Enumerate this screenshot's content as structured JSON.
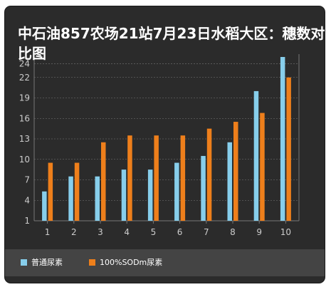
{
  "chart_data": {
    "type": "bar",
    "title": "中石油857农场21站7月23日水稻大区：穗数对比图",
    "categories": [
      "1",
      "2",
      "3",
      "4",
      "5",
      "6",
      "7",
      "8",
      "9",
      "10"
    ],
    "series": [
      {
        "name": "普通尿素",
        "color": "#87ceeb",
        "values": [
          5.3,
          7.5,
          7.5,
          8.5,
          8.5,
          9.5,
          10.5,
          12.5,
          20,
          25
        ]
      },
      {
        "name": "100%SODm尿素",
        "color": "#ee7f1b",
        "values": [
          9.5,
          9.5,
          12.5,
          13.5,
          13.5,
          13.5,
          14.5,
          15.5,
          16.8,
          22
        ]
      }
    ],
    "yticks": [
      1,
      4,
      7,
      10,
      13,
      16,
      19,
      22,
      24
    ],
    "ylim": [
      1,
      25
    ],
    "grid": true,
    "legend_position": "bottom-left",
    "background": "#2b2b2b"
  }
}
